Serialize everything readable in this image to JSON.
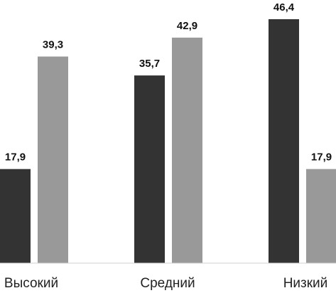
{
  "chart_data": {
    "type": "bar",
    "categories": [
      "Высокий",
      "Средний",
      "Низкий"
    ],
    "series": [
      {
        "values": [
          17.9,
          35.7,
          46.4
        ],
        "color": "#333333"
      },
      {
        "values": [
          39.3,
          42.9,
          17.9
        ],
        "color": "#999999"
      }
    ],
    "value_labels": [
      [
        "17,9",
        "35,7",
        "46,4"
      ],
      [
        "39,3",
        "42,9",
        "17,9"
      ]
    ],
    "title": "",
    "xlabel": "",
    "ylabel": "",
    "ylim": [
      0,
      50
    ],
    "grid": false,
    "legend": "none"
  }
}
